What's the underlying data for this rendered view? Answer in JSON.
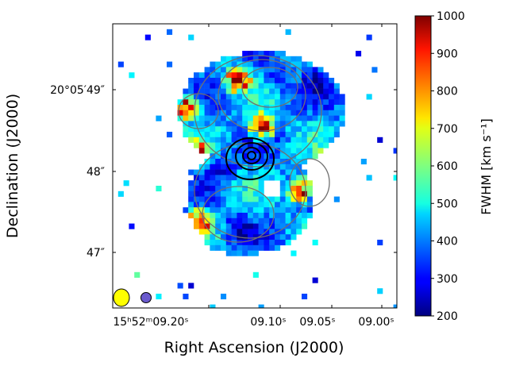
{
  "chart_data": {
    "type": "heatmap",
    "title": "",
    "xlabel": "Right Ascension (J2000)",
    "ylabel": "Declination (J2000)",
    "x_ticks": [
      {
        "label": "15ʰ52ᵐ09.20ˢ",
        "ra_sec": 9.2
      },
      {
        "label": "09.10ˢ",
        "ra_sec": 9.1
      },
      {
        "label": "09.05ˢ",
        "ra_sec": 9.05
      },
      {
        "label": "09.00ˢ",
        "ra_sec": 9.0
      }
    ],
    "y_ticks": [
      {
        "label": "20°05′49″",
        "dec_arcsec": 49
      },
      {
        "label": "48″",
        "dec_arcsec": 48
      },
      {
        "label": "47″",
        "dec_arcsec": 47
      }
    ],
    "colorbar": {
      "label": "FWHM [km s⁻¹]",
      "min": 200,
      "max": 1000,
      "ticks": [
        200,
        300,
        400,
        500,
        600,
        700,
        800,
        900,
        1000
      ],
      "colormap": "jet"
    },
    "map_description_values": {
      "value_range_km_s": [
        200,
        1000
      ],
      "peak_contour_levels": 4
    },
    "beams": [
      {
        "name": "yellow-beam",
        "color": "#ffff00"
      },
      {
        "name": "purple-beam",
        "color": "#6a5acd"
      }
    ]
  }
}
